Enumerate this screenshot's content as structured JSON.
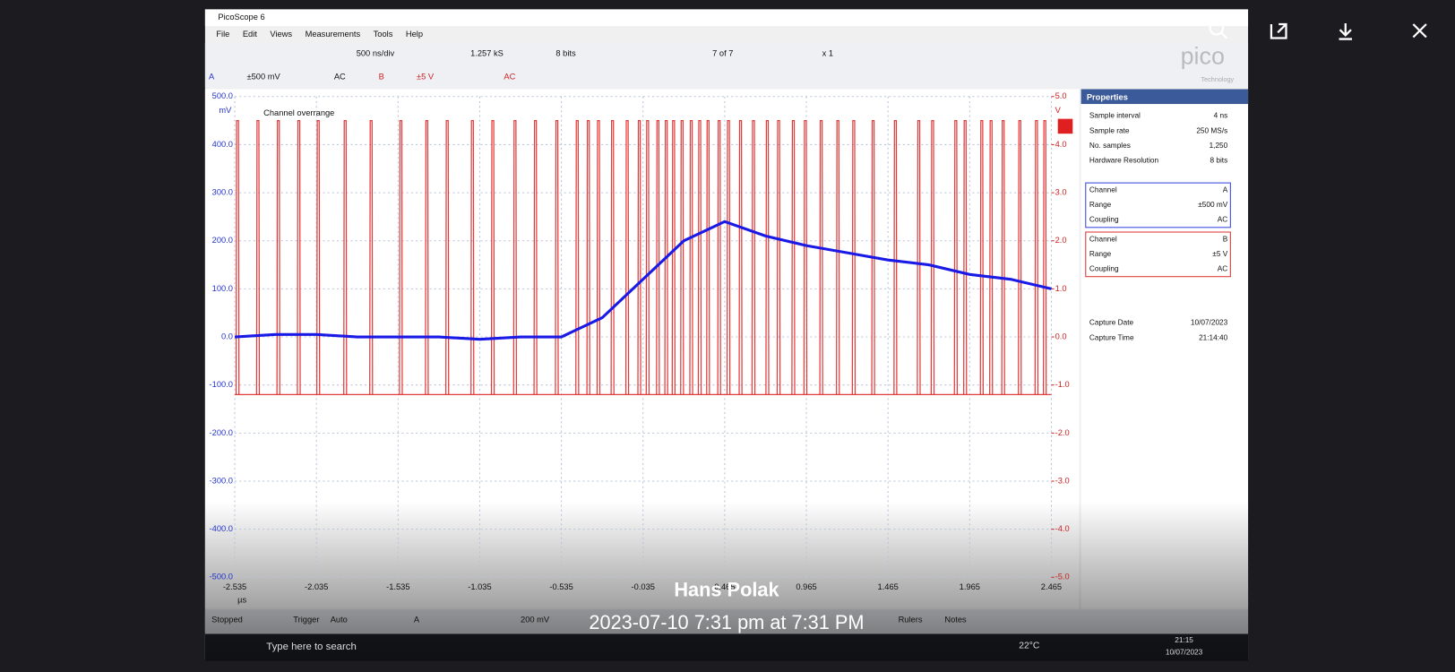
{
  "viewer": {
    "caption_author": "Hans Polak",
    "caption_date": "2023-07-10 7:31 pm at 7:31 PM"
  },
  "window": {
    "title": "PicoScope 6",
    "menu": [
      "File",
      "Edit",
      "Views",
      "Measurements",
      "Tools",
      "Help"
    ],
    "logo": "pico",
    "logo_sub": "Technology"
  },
  "toolbar": {
    "timebase": "500 ns/div",
    "samples": "1.257 kS",
    "resolution": "8 bits",
    "capture": "7 of 7",
    "zoom": "x 1"
  },
  "channels": {
    "a_label": "A",
    "a_range": "±500 mV",
    "a_coupling": "AC",
    "b_label": "B",
    "b_range": "±5 V",
    "b_coupling": "AC"
  },
  "scope": {
    "annotation": "Channel overrange",
    "y_unit": "mV",
    "y2_unit": "V",
    "x_unit": "µs",
    "xlim": [
      -2.535,
      2.465
    ],
    "ylim": [
      -500,
      500
    ],
    "y2lim": [
      -5,
      5
    ],
    "xticks": [
      -2.535,
      -2.035,
      -1.535,
      -1.035,
      -0.535,
      -0.035,
      0.465,
      0.965,
      1.465,
      1.965,
      2.465
    ],
    "yticks": [
      {
        "value": 500,
        "label": "500.0"
      },
      {
        "value": 400,
        "label": "400.0"
      },
      {
        "value": 300,
        "label": "300.0"
      },
      {
        "value": 200,
        "label": "200.0"
      },
      {
        "value": 100,
        "label": "100.0"
      },
      {
        "value": 0,
        "label": "0.0"
      },
      {
        "value": -100,
        "label": "-100.0"
      },
      {
        "value": -200,
        "label": "-200.0"
      },
      {
        "value": -300,
        "label": "-300.0"
      },
      {
        "value": -400,
        "label": "-400.0"
      },
      {
        "value": -500,
        "label": "-500.0"
      }
    ],
    "y2ticks": [
      {
        "value": 5,
        "label": "5.0"
      },
      {
        "value": 4,
        "label": "4.0"
      },
      {
        "value": 3,
        "label": "3.0"
      },
      {
        "value": 2,
        "label": "2.0"
      },
      {
        "value": 1,
        "label": "1.0"
      },
      {
        "value": 0,
        "label": "0.0"
      },
      {
        "value": -1,
        "label": "-1.0"
      },
      {
        "value": -2,
        "label": "-2.0"
      },
      {
        "value": -3,
        "label": "-3.0"
      },
      {
        "value": -4,
        "label": "-4.0"
      },
      {
        "value": -5,
        "label": "-5.0"
      }
    ],
    "channel_a": {
      "color": "#1a1ae6",
      "x": [
        -2.535,
        -2.285,
        -2.035,
        -1.785,
        -1.535,
        -1.285,
        -1.035,
        -0.785,
        -0.535,
        -0.285,
        -0.035,
        0.215,
        0.465,
        0.715,
        0.965,
        1.215,
        1.465,
        1.715,
        1.965,
        2.215,
        2.465
      ],
      "values": [
        0,
        5,
        5,
        0,
        0,
        0,
        -5,
        0,
        0,
        40,
        120,
        200,
        240,
        210,
        190,
        175,
        160,
        150,
        130,
        120,
        100
      ]
    },
    "channel_b": {
      "color": "#e23b3b",
      "pulse_high": 4.5,
      "pulse_low": -1.2,
      "pulse_times": [
        -2.518,
        -2.393,
        -2.268,
        -2.143,
        -2.024,
        -1.859,
        -1.7,
        -1.518,
        -1.359,
        -1.234,
        -1.08,
        -0.955,
        -0.819,
        -0.694,
        -0.563,
        -0.438,
        -0.37,
        -0.308,
        -0.222,
        -0.132,
        -0.058,
        -0.007,
        0.056,
        0.107,
        0.152,
        0.204,
        0.26,
        0.312,
        0.363,
        0.431,
        0.488,
        0.562,
        0.641,
        0.726,
        0.795,
        0.885,
        0.959,
        1.056,
        1.158,
        1.255,
        1.374,
        1.51,
        1.653,
        1.738,
        1.88,
        1.937,
        2.039,
        2.096,
        2.17,
        2.272,
        2.374,
        2.425
      ]
    }
  },
  "properties": {
    "title": "Properties",
    "rows": [
      [
        "Sample interval",
        "4 ns"
      ],
      [
        "Sample rate",
        "250 MS/s"
      ],
      [
        "No. samples",
        "1,250"
      ],
      [
        "Hardware Resolution",
        "8 bits"
      ]
    ],
    "channel_a": [
      [
        "Channel",
        "A"
      ],
      [
        "Range",
        "±500 mV"
      ],
      [
        "Coupling",
        "AC"
      ]
    ],
    "channel_b": [
      [
        "Channel",
        "B"
      ],
      [
        "Range",
        "±5 V"
      ],
      [
        "Coupling",
        "AC"
      ]
    ],
    "capture": [
      [
        "Capture Date",
        "10/07/2023"
      ],
      [
        "Capture Time",
        "21:14:40"
      ]
    ]
  },
  "status": {
    "state": "Stopped",
    "trigger": "Trigger",
    "mode": "Auto",
    "source": "A",
    "level": "200 mV",
    "rulers": "Rulers",
    "notes": "Notes"
  },
  "taskbar": {
    "search": "Type here to search",
    "weather": "22°C",
    "time": "21:15",
    "date": "10/07/2023"
  }
}
